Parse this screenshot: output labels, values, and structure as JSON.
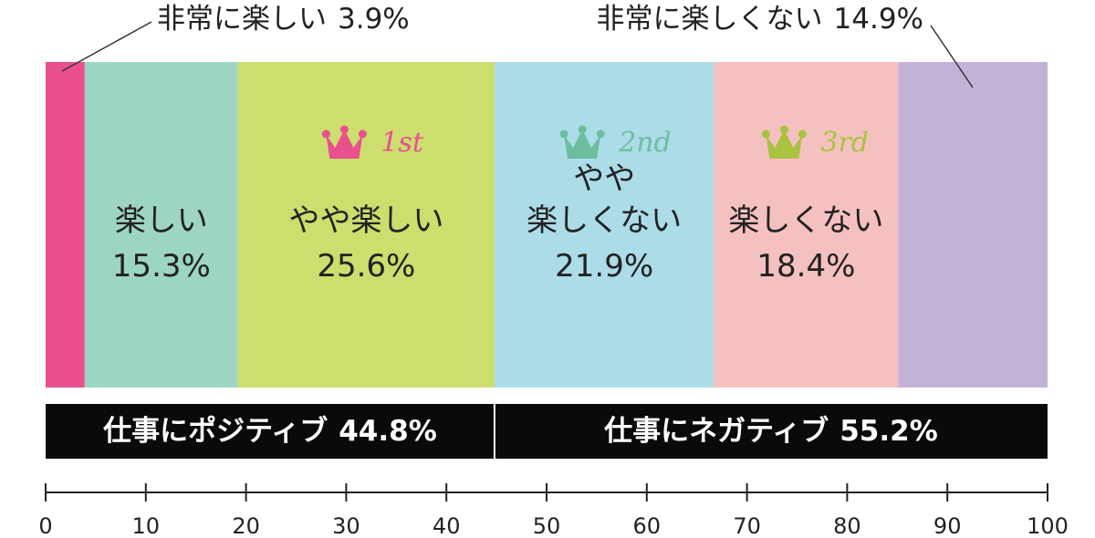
{
  "chart_data": {
    "type": "stacked_bar_100",
    "categories": [
      "非常に楽しい",
      "楽しい",
      "やや楽しい",
      "やや\n楽しくない",
      "楽しくない",
      "非常に楽しくない"
    ],
    "values": [
      3.9,
      15.3,
      25.6,
      21.9,
      18.4,
      14.9
    ],
    "value_labels": [
      "3.9%",
      "15.3%",
      "25.6%",
      "21.9%",
      "18.4%",
      "14.9%"
    ],
    "colors": [
      "#e8508e",
      "#9dd5c3",
      "#cddd6e",
      "#acdce8",
      "#f5c1c0",
      "#c3b2d8"
    ],
    "rank_labels": [
      null,
      null,
      "1st",
      "2nd",
      "3rd",
      null
    ],
    "rank_colors": [
      null,
      null,
      "#e8508e",
      "#6bbf9f",
      "#a9c23f",
      null
    ],
    "groups": [
      {
        "label": "仕事にポジティブ",
        "value": 44.8,
        "value_label": "44.8%"
      },
      {
        "label": "仕事にネガティブ",
        "value": 55.2,
        "value_label": "55.2%"
      }
    ],
    "xlim": [
      0,
      100
    ],
    "xticks": [
      0,
      10,
      20,
      30,
      40,
      50,
      60,
      70,
      80,
      90,
      100
    ]
  }
}
